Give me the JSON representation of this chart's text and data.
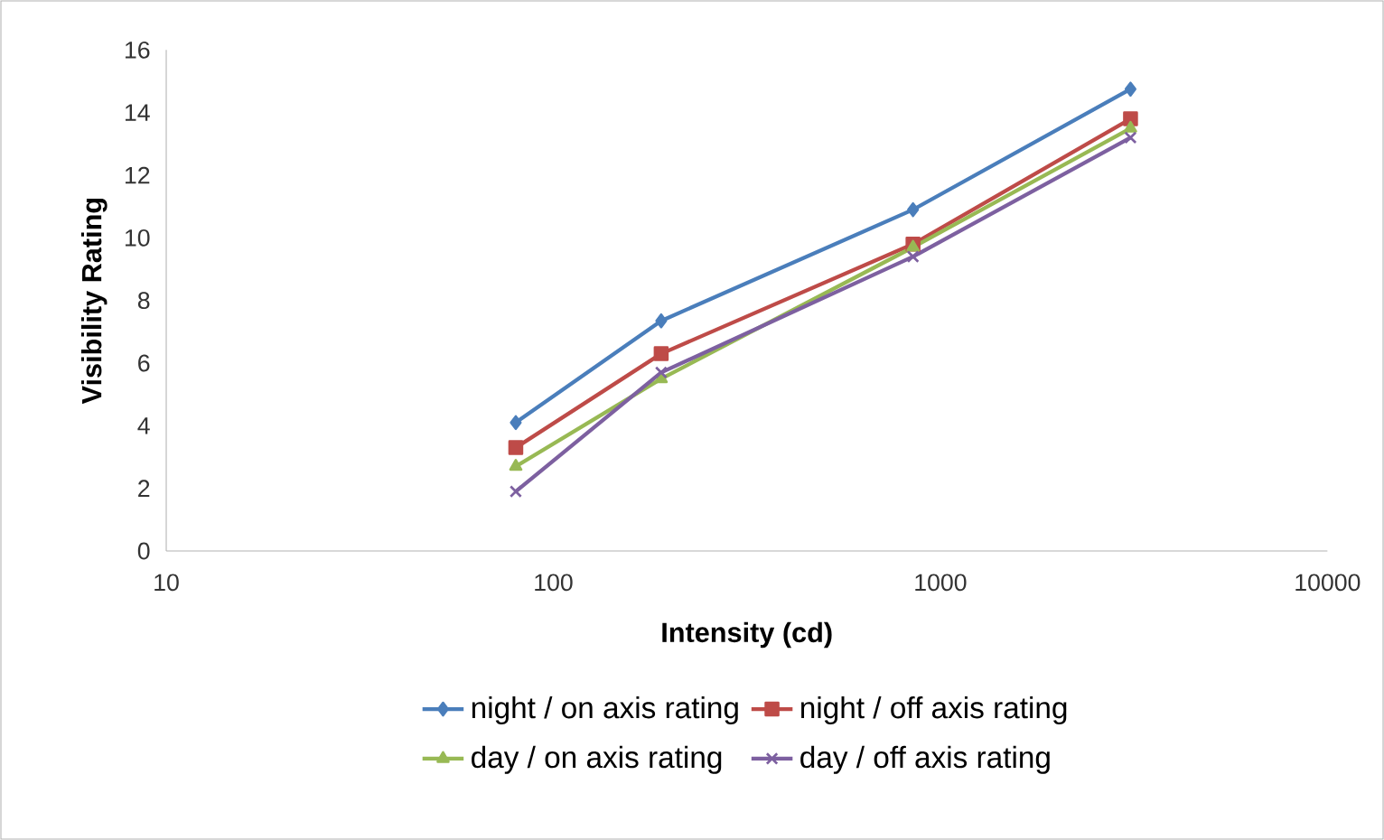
{
  "chart_data": {
    "type": "line",
    "xlabel": "Intensity (cd)",
    "ylabel": "Visibility Rating",
    "x": [
      80,
      190,
      850,
      3100
    ],
    "series": [
      {
        "name": "night / on axis rating",
        "color": "#4a7ebb",
        "marker": "diamond",
        "values": [
          4.1,
          7.35,
          10.9,
          14.75
        ]
      },
      {
        "name": "night / off axis rating",
        "color": "#be4b48",
        "marker": "square",
        "values": [
          3.3,
          6.3,
          9.8,
          13.8
        ]
      },
      {
        "name": "day / on axis rating",
        "color": "#98b954",
        "marker": "triangle",
        "values": [
          2.7,
          5.5,
          9.7,
          13.5
        ]
      },
      {
        "name": "day / off axis rating",
        "color": "#7d60a0",
        "marker": "cross",
        "values": [
          1.9,
          5.7,
          9.4,
          13.2
        ]
      }
    ],
    "log": "x",
    "xlim": [
      10,
      10000
    ],
    "xticks": [
      10,
      100,
      1000,
      10000
    ],
    "ylim": [
      0,
      16
    ],
    "yticks": [
      0,
      2,
      4,
      6,
      8,
      10,
      12,
      14,
      16
    ],
    "legend": "bottom",
    "grid": false,
    "line_style": "solid"
  }
}
